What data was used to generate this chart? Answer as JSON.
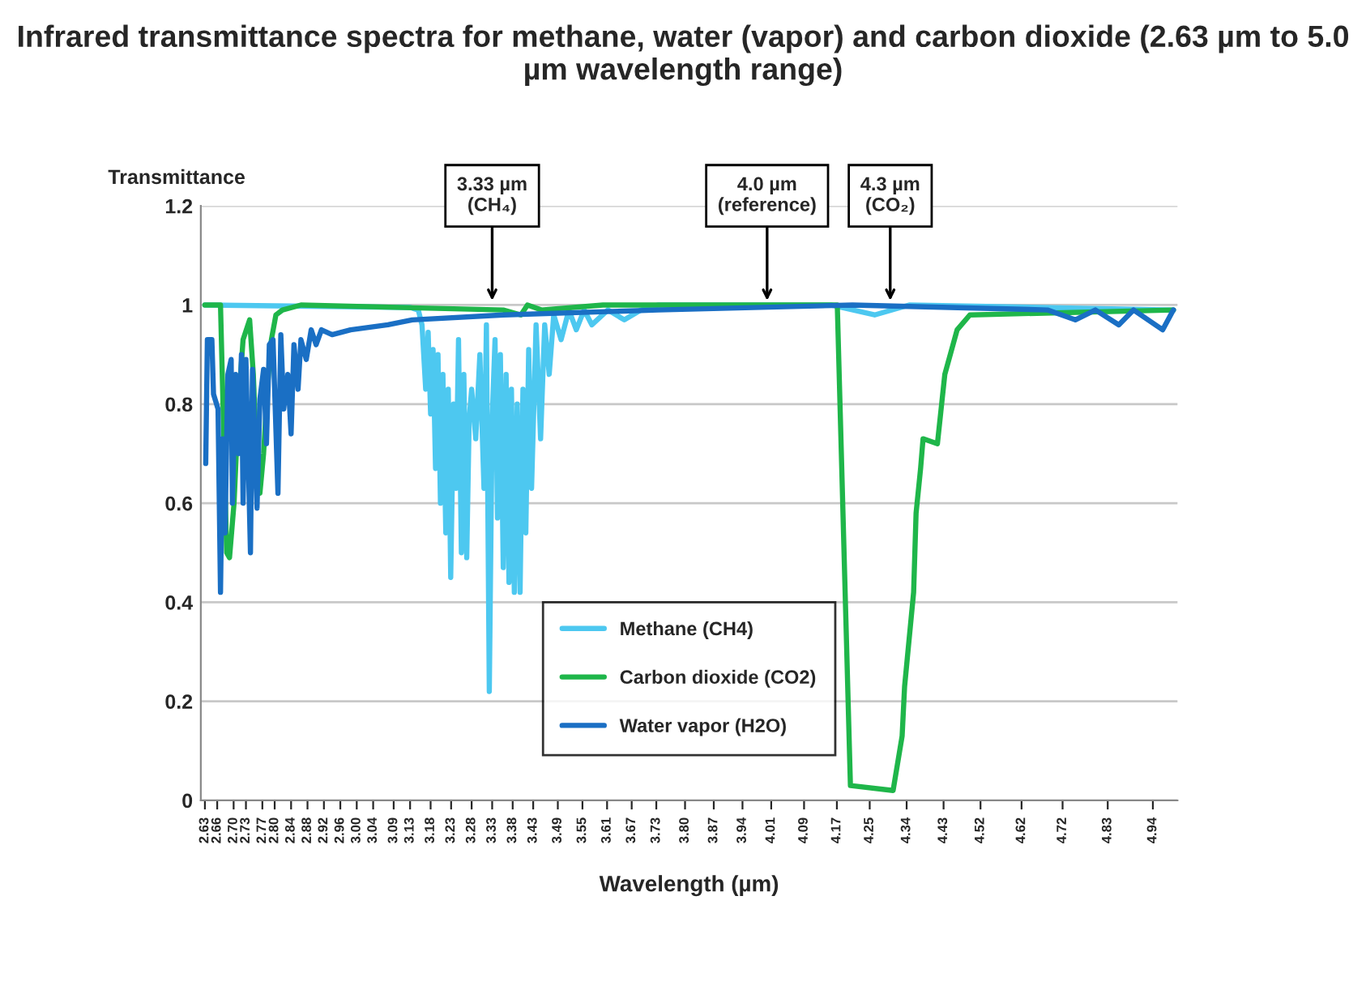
{
  "chart_data": {
    "type": "line",
    "title": "Infrared transmittance spectra for methane, water (vapor) and carbon dioxide (2.63 µm to 5.0 µm wavelength range)",
    "xlabel": "Wavelength (µm)",
    "ylabel": "Transmittance",
    "xlim": [
      2.62,
      5.0
    ],
    "ylim": [
      0,
      1.2
    ],
    "xticks": [
      2.63,
      2.66,
      {
        "value": 2.7,
        "label": "2.70"
      },
      2.73,
      2.77,
      {
        "value": 2.8,
        "label": "2.80"
      },
      2.84,
      2.88,
      2.92,
      2.96,
      {
        "value": 3.0,
        "label": "3.00"
      },
      3.04,
      3.09,
      3.13,
      3.18,
      3.23,
      3.28,
      3.33,
      3.38,
      3.43,
      3.49,
      3.55,
      3.61,
      3.67,
      3.73,
      {
        "value": 3.8,
        "label": "3.80"
      },
      3.87,
      3.94,
      4.01,
      4.09,
      4.17,
      4.25,
      4.34,
      4.43,
      4.52,
      4.62,
      4.72,
      4.83,
      4.94
    ],
    "yticks": [
      0,
      0.2,
      0.4,
      0.6,
      0.8,
      1,
      1.2
    ],
    "grid": "y",
    "legend": "bottom",
    "series": [
      {
        "name": "Methane (CH4)",
        "color": "#4dc8f0",
        "x": [
          2.63,
          3.13,
          3.15,
          3.159,
          3.168,
          3.174,
          3.18,
          3.186,
          3.192,
          3.198,
          3.204,
          3.21,
          3.217,
          3.223,
          3.229,
          3.236,
          3.242,
          3.248,
          3.255,
          3.261,
          3.268,
          3.274,
          3.28,
          3.29,
          3.3,
          3.31,
          3.316,
          3.323,
          3.33,
          3.337,
          3.343,
          3.35,
          3.357,
          3.364,
          3.371,
          3.377,
          3.384,
          3.391,
          3.398,
          3.405,
          3.412,
          3.419,
          3.426,
          3.437,
          3.448,
          3.458,
          3.469,
          3.48,
          3.498,
          3.517,
          3.535,
          3.554,
          3.573,
          3.612,
          3.652,
          3.693,
          3.734,
          4.155,
          4.262,
          4.346,
          4.99
        ],
        "values": [
          1.0,
          0.995,
          0.99,
          0.96,
          0.83,
          0.945,
          0.78,
          0.91,
          0.67,
          0.9,
          0.6,
          0.86,
          0.54,
          0.83,
          0.45,
          0.8,
          0.63,
          0.93,
          0.5,
          0.86,
          0.49,
          0.77,
          0.83,
          0.73,
          0.9,
          0.63,
          0.96,
          0.22,
          0.77,
          0.93,
          0.57,
          0.9,
          0.47,
          0.86,
          0.44,
          0.83,
          0.42,
          0.8,
          0.42,
          0.83,
          0.54,
          0.91,
          0.63,
          0.96,
          0.73,
          0.96,
          0.86,
          0.98,
          0.93,
          0.99,
          0.95,
          0.99,
          0.96,
          0.99,
          0.97,
          0.99,
          1.0,
          1.0,
          0.98,
          1.0,
          0.99
        ]
      },
      {
        "name": "Carbon dioxide (CO2)",
        "color": "#1fb64a",
        "x": [
          2.63,
          2.668,
          2.675,
          2.683,
          2.69,
          2.701,
          2.712,
          2.723,
          2.739,
          2.748,
          2.757,
          2.764,
          2.773,
          2.782,
          2.792,
          2.803,
          2.819,
          2.864,
          3.357,
          3.4,
          3.416,
          3.45,
          3.6,
          4.171,
          4.203,
          4.307,
          4.329,
          4.335,
          4.357,
          4.363,
          4.374,
          4.38,
          4.415,
          4.433,
          4.463,
          4.494,
          4.99
        ],
        "values": [
          1.0,
          1.0,
          0.77,
          0.5,
          0.49,
          0.6,
          0.8,
          0.93,
          0.97,
          0.86,
          0.67,
          0.62,
          0.7,
          0.83,
          0.93,
          0.98,
          0.99,
          1.0,
          0.99,
          0.98,
          1.0,
          0.99,
          1.0,
          1.0,
          0.03,
          0.02,
          0.13,
          0.23,
          0.42,
          0.58,
          0.67,
          0.73,
          0.72,
          0.86,
          0.95,
          0.98,
          0.99
        ]
      },
      {
        "name": "Water vapor (H2O)",
        "color": "#1a6fc4",
        "x": [
          2.632,
          2.636,
          2.647,
          2.651,
          2.662,
          2.668,
          2.673,
          2.679,
          2.686,
          2.694,
          2.697,
          2.705,
          2.712,
          2.719,
          2.723,
          2.73,
          2.741,
          2.746,
          2.757,
          2.764,
          2.773,
          2.78,
          2.787,
          2.796,
          2.808,
          2.815,
          2.822,
          2.832,
          2.84,
          2.847,
          2.857,
          2.864,
          2.877,
          2.889,
          2.901,
          2.914,
          2.94,
          2.985,
          3.076,
          3.135,
          3.357,
          3.734,
          4.208,
          4.683,
          4.751,
          4.8,
          4.857,
          4.893,
          4.964,
          4.99
        ],
        "values": [
          0.68,
          0.93,
          0.93,
          0.82,
          0.79,
          0.42,
          0.73,
          0.54,
          0.86,
          0.89,
          0.6,
          0.86,
          0.7,
          0.9,
          0.6,
          0.89,
          0.5,
          0.87,
          0.59,
          0.81,
          0.87,
          0.72,
          0.92,
          0.93,
          0.62,
          0.94,
          0.79,
          0.86,
          0.74,
          0.92,
          0.83,
          0.93,
          0.89,
          0.95,
          0.92,
          0.95,
          0.94,
          0.95,
          0.96,
          0.97,
          0.98,
          0.99,
          1.0,
          0.99,
          0.97,
          0.99,
          0.96,
          0.99,
          0.95,
          0.99
        ]
      }
    ],
    "annotations": [
      {
        "text": "3.33 µm\n(CH₄)",
        "x": 3.33,
        "y": 1.0
      },
      {
        "text": "4.0 µm\n(reference)",
        "x": 4.0,
        "y": 1.0
      },
      {
        "text": "4.3 µm\n(CO₂)",
        "x": 4.3,
        "y": 1.0
      }
    ]
  }
}
